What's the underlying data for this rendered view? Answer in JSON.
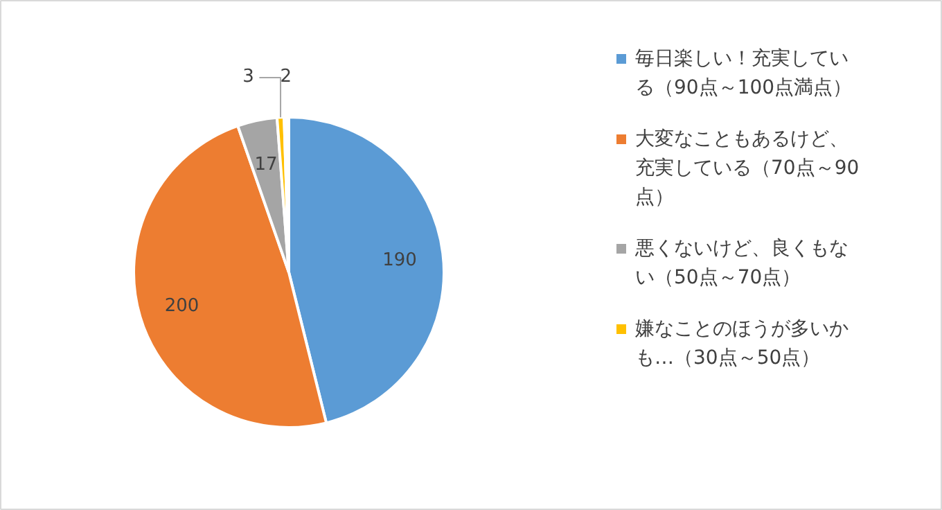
{
  "chart_data": {
    "type": "pie",
    "categories": [
      "毎日楽しい！充実している（90点～100点満点）",
      "大変なこともあるけど、充実している（70点～90点）",
      "悪くないけど、良くもない（50点～70点）",
      "嫌なことのほうが多いかも…（30点～50点）",
      null
    ],
    "values": [
      190,
      200,
      17,
      3,
      2
    ],
    "colors": [
      "#5b9bd5",
      "#ed7d31",
      "#a5a5a5",
      "#ffc000",
      "#ffffff"
    ],
    "data_labels": true,
    "legend": "right"
  }
}
